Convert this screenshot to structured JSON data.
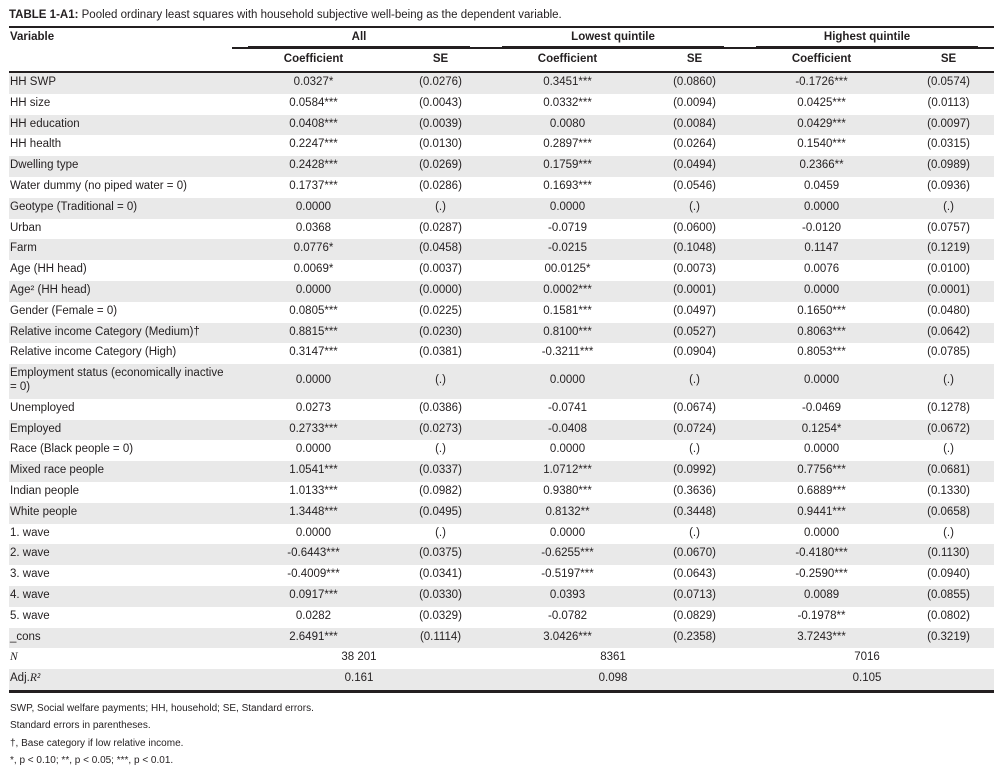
{
  "title": {
    "prefix": "TABLE 1-A1:",
    "text": " Pooled ordinary least squares with household subjective well-being as the dependent variable."
  },
  "colors": {
    "text": "#231f20",
    "row_stripe": "#e9e9e9",
    "rule": "#231f20"
  },
  "table": {
    "variable_header": "Variable",
    "groups": [
      {
        "label": "All"
      },
      {
        "label": "Lowest quintile"
      },
      {
        "label": "Highest quintile"
      }
    ],
    "subheaders": {
      "coefficient": "Coefficient",
      "se": "SE"
    },
    "rows": [
      {
        "label": "HH SWP",
        "values": [
          "0.0327*",
          "(0.0276)",
          "0.3451***",
          "(0.0860)",
          "-0.1726***",
          "(0.0574)"
        ]
      },
      {
        "label": "HH size",
        "values": [
          "0.0584***",
          "(0.0043)",
          "0.0332***",
          "(0.0094)",
          "0.0425***",
          "(0.0113)"
        ]
      },
      {
        "label": "HH education",
        "values": [
          "0.0408***",
          "(0.0039)",
          "0.0080",
          "(0.0084)",
          "0.0429***",
          "(0.0097)"
        ]
      },
      {
        "label": "HH health",
        "values": [
          "0.2247***",
          "(0.0130)",
          "0.2897***",
          "(0.0264)",
          "0.1540***",
          "(0.0315)"
        ]
      },
      {
        "label": "Dwelling type",
        "values": [
          "0.2428***",
          "(0.0269)",
          "0.1759***",
          "(0.0494)",
          "0.2366**",
          "(0.0989)"
        ]
      },
      {
        "label": "Water dummy (no piped water = 0)",
        "values": [
          "0.1737***",
          "(0.0286)",
          "0.1693***",
          "(0.0546)",
          "0.0459",
          "(0.0936)"
        ]
      },
      {
        "label": "Geotype (Traditional = 0)",
        "values": [
          "0.0000",
          "(.)",
          "0.0000",
          "(.)",
          "0.0000",
          "(.)"
        ]
      },
      {
        "label": "Urban",
        "values": [
          "0.0368",
          "(0.0287)",
          "-0.0719",
          "(0.0600)",
          "-0.0120",
          "(0.0757)"
        ]
      },
      {
        "label": "Farm",
        "values": [
          "0.0776*",
          "(0.0458)",
          "-0.0215",
          "(0.1048)",
          "0.1147",
          "(0.1219)"
        ]
      },
      {
        "label": "Age (HH head)",
        "values": [
          "0.0069*",
          "(0.0037)",
          "00.0125*",
          "(0.0073)",
          "0.0076",
          "(0.0100)"
        ]
      },
      {
        "label": "Age² (HH head)",
        "values": [
          "0.0000",
          "(0.0000)",
          "0.0002***",
          "(0.0001)",
          "0.0000",
          "(0.0001)"
        ]
      },
      {
        "label": "Gender (Female = 0)",
        "values": [
          "0.0805***",
          "(0.0225)",
          "0.1581***",
          "(0.0497)",
          "0.1650***",
          "(0.0480)"
        ]
      },
      {
        "label": "Relative income Category (Medium)†",
        "values": [
          "0.8815***",
          "(0.0230)",
          "0.8100***",
          "(0.0527)",
          "0.8063***",
          "(0.0642)"
        ]
      },
      {
        "label": "Relative income Category (High)",
        "values": [
          "0.3147***",
          "(0.0381)",
          "-0.3211***",
          "(0.0904)",
          "0.8053***",
          "(0.0785)"
        ]
      },
      {
        "label": "Employment status (economically inactive = 0)",
        "values": [
          "0.0000",
          "(.)",
          "0.0000",
          "(.)",
          "0.0000",
          "(.)"
        ]
      },
      {
        "label": "Unemployed",
        "values": [
          "0.0273",
          "(0.0386)",
          "-0.0741",
          "(0.0674)",
          "-0.0469",
          "(0.1278)"
        ]
      },
      {
        "label": "Employed",
        "values": [
          "0.2733***",
          "(0.0273)",
          "-0.0408",
          "(0.0724)",
          "0.1254*",
          "(0.0672)"
        ]
      },
      {
        "label": "Race (Black people = 0)",
        "values": [
          "0.0000",
          "(.)",
          "0.0000",
          "(.)",
          "0.0000",
          "(.)"
        ]
      },
      {
        "label": "Mixed race people",
        "values": [
          "1.0541***",
          "(0.0337)",
          "1.0712***",
          "(0.0992)",
          "0.7756***",
          "(0.0681)"
        ]
      },
      {
        "label": "Indian people",
        "values": [
          "1.0133***",
          "(0.0982)",
          "0.9380***",
          "(0.3636)",
          "0.6889***",
          "(0.1330)"
        ]
      },
      {
        "label": "White people",
        "values": [
          "1.3448***",
          "(0.0495)",
          "0.8132**",
          "(0.3448)",
          "0.9441***",
          "(0.0658)"
        ]
      },
      {
        "label": "1. wave",
        "values": [
          "0.0000",
          "(.)",
          "0.0000",
          "(.)",
          "0.0000",
          "(.)"
        ]
      },
      {
        "label": "2. wave",
        "values": [
          "-0.6443***",
          "(0.0375)",
          "-0.6255***",
          "(0.0670)",
          "-0.4180***",
          "(0.1130)"
        ]
      },
      {
        "label": "3. wave",
        "values": [
          "-0.4009***",
          "(0.0341)",
          "-0.5197***",
          "(0.0643)",
          "-0.2590***",
          "(0.0940)"
        ]
      },
      {
        "label": "4. wave",
        "values": [
          "0.0917***",
          "(0.0330)",
          "0.0393",
          "(0.0713)",
          "0.0089",
          "(0.0855)"
        ]
      },
      {
        "label": "5. wave",
        "values": [
          "0.0282",
          "(0.0329)",
          "-0.0782",
          "(0.0829)",
          "-0.1978**",
          "(0.0802)"
        ]
      },
      {
        "label": "_cons",
        "values": [
          "2.6491***",
          "(0.1114)",
          "3.0426***",
          "(0.2358)",
          "3.7243***",
          "(0.3219)"
        ]
      }
    ],
    "summary_rows": [
      {
        "label_main": "",
        "label_math": "N",
        "values": [
          "38 201",
          "8361",
          "7016"
        ]
      },
      {
        "label_main": "Adj.",
        "label_math": "R²",
        "values": [
          "0.161",
          "0.098",
          "0.105"
        ]
      }
    ]
  },
  "footnotes": [
    "SWP, Social welfare payments; HH, household; SE, Standard errors.",
    "Standard errors in parentheses.",
    "†, Base category if low relative income.",
    "*, p < 0.10; **, p < 0.05; ***, p < 0.01."
  ]
}
